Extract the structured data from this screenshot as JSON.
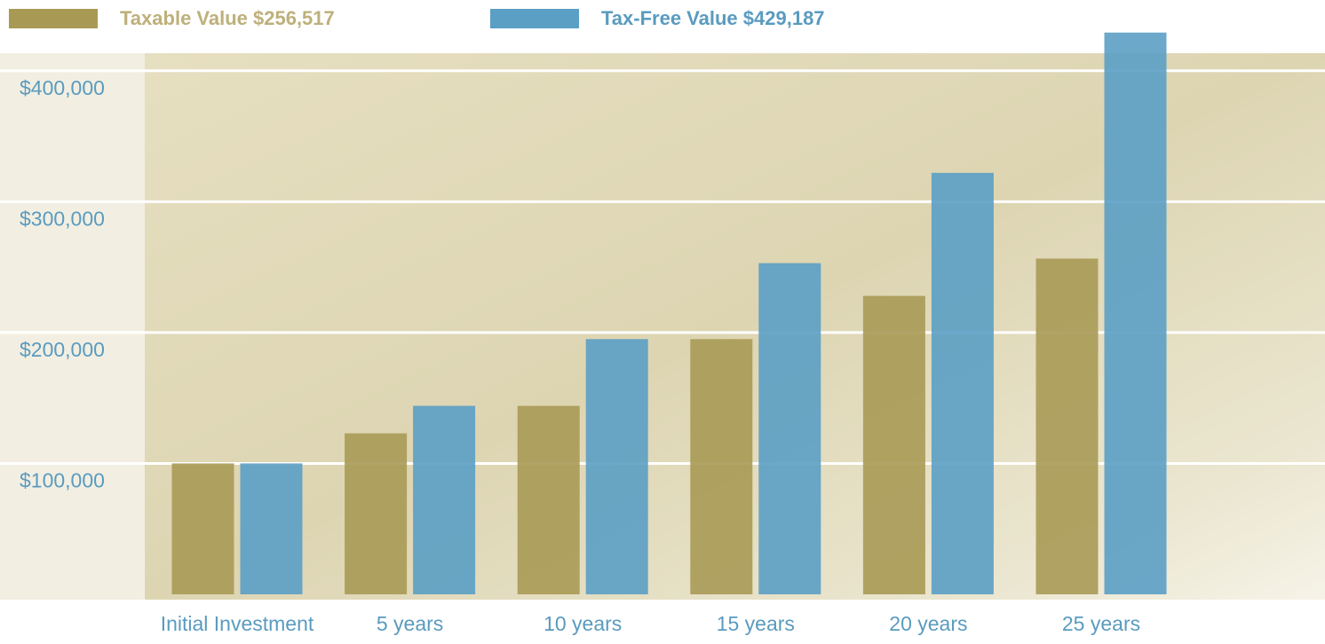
{
  "chart_data": {
    "type": "bar",
    "categories": [
      "Initial Investment",
      "5 years",
      "10 years",
      "15 years",
      "20 years",
      "25 years"
    ],
    "series": [
      {
        "name": "Taxable Value $256,517",
        "color": "#a89a55",
        "values": [
          100000,
          123000,
          144000,
          195000,
          228000,
          256517
        ]
      },
      {
        "name": "Tax-Free Value $429,187",
        "color": "#5b9fc4",
        "values": [
          100000,
          144000,
          195000,
          253000,
          322000,
          429187
        ]
      }
    ],
    "ylim": [
      0,
      450000
    ],
    "yticks": [
      {
        "value": 100000,
        "label": "$100,000"
      },
      {
        "value": 200000,
        "label": "$200,000"
      },
      {
        "value": 300000,
        "label": "$300,000"
      },
      {
        "value": 400000,
        "label": "$400,000"
      }
    ],
    "grid": true
  }
}
